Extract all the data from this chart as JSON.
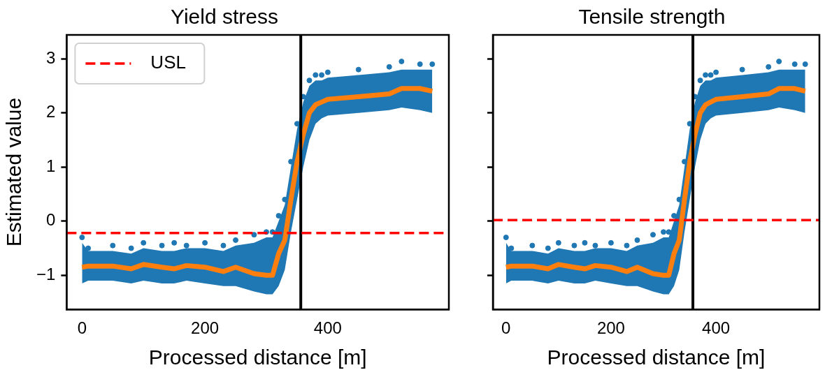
{
  "chart_data": [
    {
      "type": "line",
      "title": "Yield stress",
      "xlabel": "Processed distance [m]",
      "ylabel": "Estimated value",
      "xlim": [
        -25,
        597
      ],
      "ylim": [
        -1.63,
        3.44
      ],
      "xticks": [
        0,
        200,
        400
      ],
      "yticks": [
        -1,
        0,
        1,
        2,
        3
      ],
      "grid": false,
      "legend": "top left",
      "marker": "none",
      "line_style": "solid",
      "series": [
        {
          "type": "scatter",
          "color": "#1f77b4",
          "marker": "circle",
          "x": [
            0,
            10,
            50,
            80,
            100,
            130,
            150,
            170,
            200,
            230,
            250,
            280,
            300,
            310,
            320,
            330,
            340,
            350,
            360,
            370,
            380,
            390,
            400,
            450,
            500,
            520,
            550,
            570
          ],
          "values": [
            -0.3,
            -0.5,
            -0.45,
            -0.5,
            -0.4,
            -0.45,
            -0.4,
            -0.45,
            -0.4,
            -0.45,
            -0.35,
            -0.25,
            -0.2,
            -0.2,
            0.1,
            0.4,
            1.1,
            1.8,
            2.3,
            2.6,
            2.7,
            2.7,
            2.75,
            2.8,
            2.85,
            2.95,
            2.9,
            2.9
          ],
          "lower": [
            -1.15,
            -1.1,
            -1.1,
            -1.15,
            -1.1,
            -1.15,
            -1.15,
            -1.1,
            -1.15,
            -1.2,
            -1.2,
            -1.3,
            -1.35,
            -1.35,
            -1.2,
            -0.9,
            -0.2,
            0.4,
            1.0,
            1.5,
            1.8,
            1.9,
            1.95,
            2.0,
            2.05,
            2.1,
            2.05,
            2.0
          ],
          "upper": [
            -0.4,
            -0.55,
            -0.55,
            -0.6,
            -0.5,
            -0.55,
            -0.55,
            -0.5,
            -0.5,
            -0.55,
            -0.45,
            -0.4,
            -0.3,
            -0.3,
            0.0,
            0.3,
            1.0,
            1.7,
            2.2,
            2.5,
            2.6,
            2.6,
            2.65,
            2.7,
            2.75,
            2.8,
            2.8,
            2.8
          ]
        },
        {
          "color": "#ff7f0e",
          "x": [
            0,
            10,
            50,
            80,
            100,
            130,
            150,
            170,
            200,
            230,
            250,
            280,
            300,
            310,
            320,
            330,
            340,
            350,
            360,
            370,
            380,
            390,
            400,
            450,
            500,
            520,
            550,
            570
          ],
          "values": [
            -0.85,
            -0.83,
            -0.83,
            -0.88,
            -0.8,
            -0.85,
            -0.88,
            -0.82,
            -0.85,
            -0.93,
            -0.85,
            -0.97,
            -1.0,
            -1.0,
            -0.6,
            -0.35,
            0.4,
            1.1,
            1.6,
            2.0,
            2.15,
            2.2,
            2.25,
            2.3,
            2.35,
            2.45,
            2.45,
            2.4
          ]
        }
      ],
      "ref_lines": [
        {
          "axis": "y",
          "value": -0.22,
          "label": "USL",
          "color": "#ff0000",
          "line_style": "dashed"
        },
        {
          "axis": "x",
          "value": 356,
          "color": "#000000",
          "line_style": "solid"
        }
      ]
    },
    {
      "type": "line",
      "title": "Tensile strength",
      "xlabel": "Processed distance [m]",
      "xlim": [
        -25,
        597
      ],
      "ylim": [
        -1.63,
        3.44
      ],
      "xticks": [
        0,
        200,
        400
      ],
      "yticks": [
        -1,
        0,
        1,
        2,
        3
      ],
      "grid": false,
      "tick_labels": "x",
      "marker": "none",
      "line_style": "solid",
      "series": [
        {
          "type": "scatter",
          "color": "#1f77b4",
          "marker": "circle",
          "x": [
            0,
            10,
            50,
            80,
            100,
            130,
            150,
            170,
            200,
            230,
            250,
            280,
            300,
            310,
            320,
            330,
            340,
            350,
            360,
            370,
            380,
            390,
            400,
            450,
            500,
            520,
            550,
            570
          ],
          "values": [
            -0.3,
            -0.5,
            -0.45,
            -0.5,
            -0.4,
            -0.45,
            -0.4,
            -0.45,
            -0.4,
            -0.45,
            -0.35,
            -0.25,
            -0.2,
            -0.2,
            0.1,
            0.4,
            1.1,
            1.8,
            2.3,
            2.6,
            2.7,
            2.7,
            2.75,
            2.8,
            2.85,
            2.95,
            2.9,
            2.9
          ],
          "lower": [
            -1.15,
            -1.1,
            -1.1,
            -1.15,
            -1.1,
            -1.15,
            -1.15,
            -1.1,
            -1.15,
            -1.2,
            -1.2,
            -1.3,
            -1.35,
            -1.35,
            -1.2,
            -0.9,
            -0.2,
            0.4,
            1.0,
            1.5,
            1.8,
            1.9,
            1.95,
            2.0,
            2.05,
            2.1,
            2.05,
            2.0
          ],
          "upper": [
            -0.4,
            -0.55,
            -0.55,
            -0.6,
            -0.5,
            -0.55,
            -0.55,
            -0.5,
            -0.5,
            -0.55,
            -0.45,
            -0.4,
            -0.3,
            -0.3,
            0.0,
            0.3,
            1.0,
            1.7,
            2.2,
            2.5,
            2.6,
            2.6,
            2.65,
            2.7,
            2.75,
            2.8,
            2.8,
            2.8
          ]
        },
        {
          "color": "#ff7f0e",
          "x": [
            0,
            10,
            50,
            80,
            100,
            130,
            150,
            170,
            200,
            230,
            250,
            280,
            300,
            310,
            320,
            330,
            340,
            350,
            360,
            370,
            380,
            390,
            400,
            450,
            500,
            520,
            550,
            570
          ],
          "values": [
            -0.85,
            -0.83,
            -0.83,
            -0.88,
            -0.8,
            -0.85,
            -0.88,
            -0.82,
            -0.85,
            -0.93,
            -0.85,
            -0.97,
            -1.0,
            -1.0,
            -0.6,
            -0.35,
            0.4,
            1.1,
            1.6,
            2.0,
            2.15,
            2.2,
            2.25,
            2.3,
            2.35,
            2.45,
            2.45,
            2.4
          ]
        }
      ],
      "ref_lines": [
        {
          "axis": "y",
          "value": 0.02,
          "color": "#ff0000",
          "line_style": "dashed"
        },
        {
          "axis": "x",
          "value": 356,
          "color": "#000000",
          "line_style": "solid"
        }
      ]
    }
  ]
}
